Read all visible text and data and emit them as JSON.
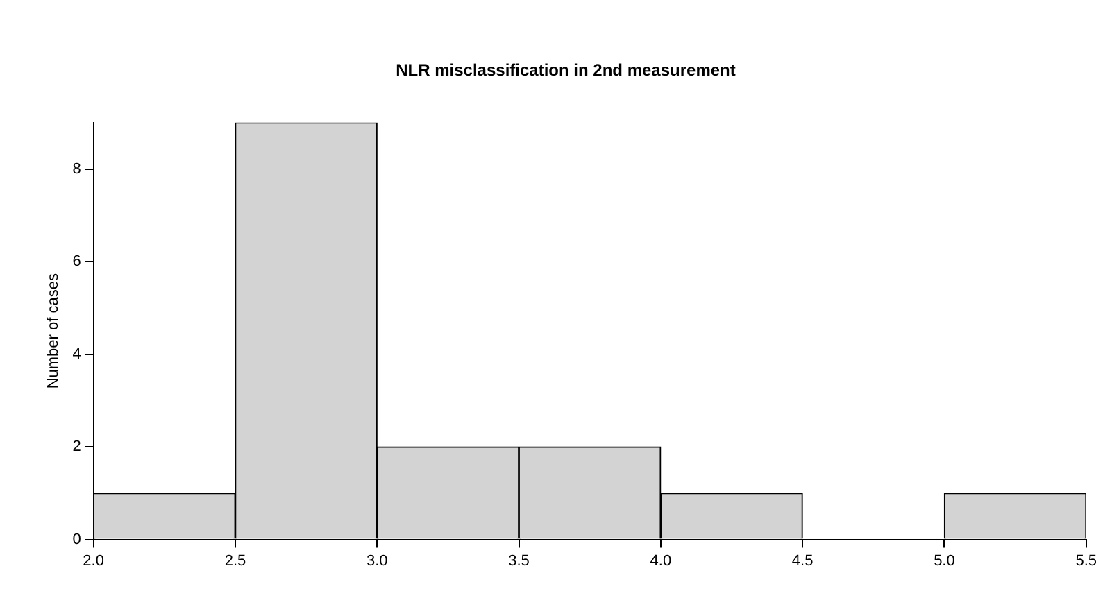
{
  "chart_data": {
    "type": "histogram",
    "title": "NLR misclassification in 2nd measurement",
    "ylabel": "Number of cases",
    "bins": [
      2.0,
      2.5,
      3.0,
      3.5,
      4.0,
      4.5,
      5.0,
      5.5
    ],
    "values": [
      1,
      9,
      2,
      2,
      1,
      0,
      1
    ],
    "color": "#d3d3d3",
    "xlim": [
      2.0,
      5.5
    ],
    "xticks": [
      {
        "value": 2.0,
        "label": "2.0"
      },
      {
        "value": 2.5,
        "label": "2.5"
      },
      {
        "value": 3.0,
        "label": "3.0"
      },
      {
        "value": 3.5,
        "label": "3.5"
      },
      {
        "value": 4.0,
        "label": "4.0"
      },
      {
        "value": 4.5,
        "label": "4.5"
      },
      {
        "value": 5.0,
        "label": "5.0"
      },
      {
        "value": 5.5,
        "label": "5.5"
      }
    ],
    "ylim": [
      0,
      9
    ],
    "yticks": [
      0,
      2,
      4,
      6,
      8
    ],
    "grid": false,
    "legend": false
  }
}
